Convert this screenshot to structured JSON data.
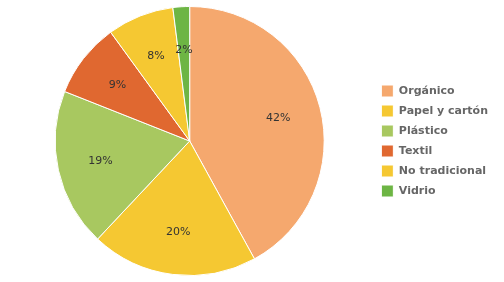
{
  "chart_data": {
    "type": "pie",
    "categories": [
      "Orgánico",
      "Papel y cartón",
      "Plástico",
      "Textil",
      "No tradicional",
      "Vidrio"
    ],
    "values": [
      42,
      20,
      19,
      9,
      8,
      2
    ],
    "value_labels": [
      "42%",
      "20%",
      "19%",
      "9%",
      "8%",
      "2%"
    ],
    "colors": [
      "#F5A86E",
      "#F5C832",
      "#A8C860",
      "#E06830",
      "#F5C832",
      "#6DB544"
    ],
    "legend": "right",
    "data_labels": true
  }
}
